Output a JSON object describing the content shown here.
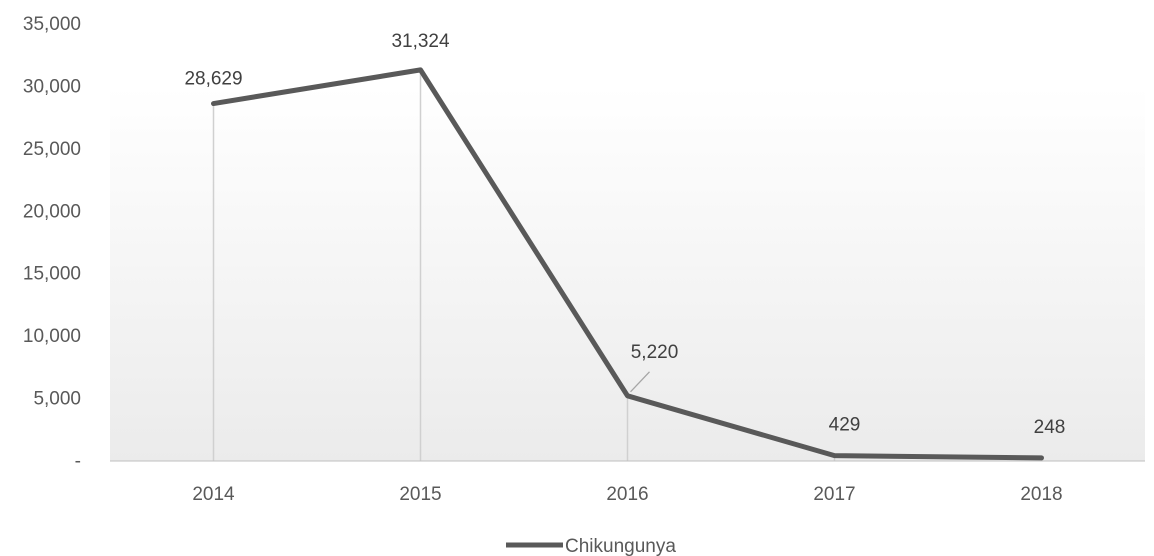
{
  "chart_data": {
    "type": "line",
    "title": "",
    "xlabel": "",
    "ylabel": "",
    "categories": [
      "2014",
      "2015",
      "2016",
      "2017",
      "2018"
    ],
    "series": [
      {
        "name": "Chikungunya",
        "values": [
          28629,
          31324,
          5220,
          429,
          248
        ],
        "data_labels": [
          "28,629",
          "31,324",
          "5,220",
          "429",
          "248"
        ],
        "color": "#595959"
      }
    ],
    "ylim": [
      0,
      35000
    ],
    "yticks": [
      0,
      5000,
      10000,
      15000,
      20000,
      25000,
      30000,
      35000
    ],
    "ytick_labels": [
      "-",
      "5,000",
      "10,000",
      "15,000",
      "20,000",
      "25,000",
      "30,000",
      "35,000"
    ],
    "drop_lines": true,
    "gridlines": false,
    "plot_background": "gradient light gray",
    "legend": {
      "position": "bottom",
      "entries": [
        "Chikungunya"
      ]
    }
  }
}
